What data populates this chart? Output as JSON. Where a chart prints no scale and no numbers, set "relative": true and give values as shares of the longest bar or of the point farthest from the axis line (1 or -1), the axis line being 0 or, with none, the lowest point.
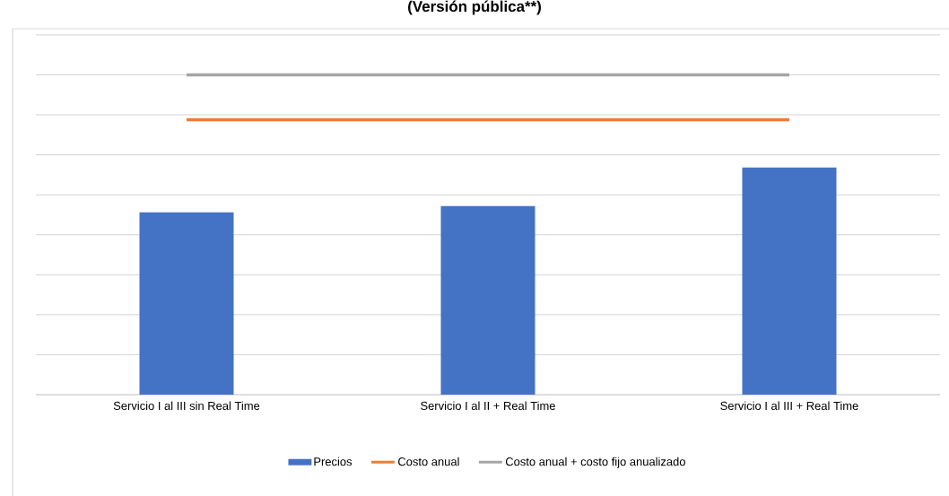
{
  "chart_data": {
    "type": "bar",
    "title": "(Versión pública**)",
    "relative": true,
    "categories": [
      "Servicio I al III sin Real Time",
      "Servicio I al II + Real Time",
      "Servicio I al III + Real Time"
    ],
    "series": [
      {
        "name": "Precios",
        "color": "#4472c4",
        "values": [
          0.57,
          0.59,
          0.71
        ]
      },
      {
        "name": "Costo anual",
        "type": "line",
        "color": "#ed7d31",
        "values": [
          0.86,
          0.86,
          0.86
        ]
      },
      {
        "name": "Costo anual + costo fijo anualizado",
        "type": "line",
        "color": "#a5a5a5",
        "values": [
          1,
          1,
          1
        ]
      }
    ],
    "grid": "y",
    "legend": "bottom",
    "marker": "none"
  }
}
